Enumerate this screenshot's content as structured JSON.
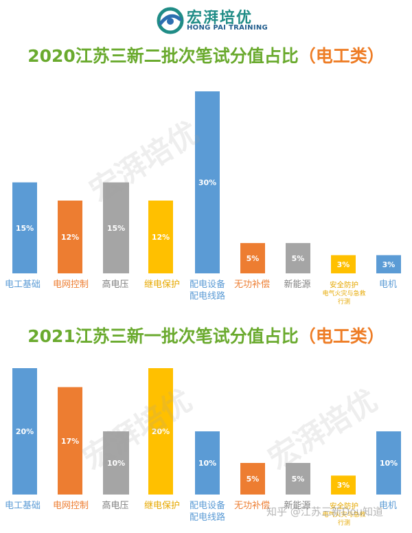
{
  "logo": {
    "name": "宏湃培优",
    "name_en": "HONG PAI TRAINING"
  },
  "watermark": {
    "text": "知乎 @江苏三新Dou知道"
  },
  "colors": {
    "blue": "#5b9bd5",
    "orange": "#ed7d31",
    "gray": "#a5a5a5",
    "gold": "#ffc000",
    "title_green": "#6aaa2e",
    "title_orange": "#ee7d26"
  },
  "chart_data": [
    {
      "type": "bar",
      "title": "2020江苏三新二批次笔试分值占比",
      "title_tag": "（电工类）",
      "categories": [
        "电工基础",
        "电网控制",
        "高电压",
        "继电保护",
        "配电设备\n配电线路",
        "无功补偿",
        "新能源",
        "安全防护\n电气火灾与急救\n行测",
        "电机"
      ],
      "values": [
        15,
        12,
        15,
        12,
        30,
        5,
        5,
        3,
        3
      ],
      "data_labels": [
        "15%",
        "12%",
        "15%",
        "12%",
        "30%",
        "5%",
        "5%",
        "3%",
        "3%"
      ],
      "bar_colors": [
        "#5b9bd5",
        "#ed7d31",
        "#a5a5a5",
        "#ffc000",
        "#5b9bd5",
        "#ed7d31",
        "#a5a5a5",
        "#ffc000",
        "#5b9bd5"
      ],
      "label_colors": [
        "#5b9bd5",
        "#ed7d31",
        "#7f7f7f",
        "#e6a800",
        "#5b9bd5",
        "#ed7d31",
        "#7f7f7f",
        "#e6a800",
        "#5b9bd5"
      ],
      "ylim": [
        0,
        30
      ],
      "grid": false,
      "legend": "none"
    },
    {
      "type": "bar",
      "title": "2021江苏三新一批次笔试分值占比",
      "title_tag": "（电工类）",
      "categories": [
        "电工基础",
        "电网控制",
        "高电压",
        "继电保护",
        "配电设备\n配电线路",
        "无功补偿",
        "新能源",
        "安全防护\n电气火灾与急救\n行测",
        "电机"
      ],
      "values": [
        20,
        17,
        10,
        20,
        10,
        5,
        5,
        3,
        10
      ],
      "data_labels": [
        "20%",
        "17%",
        "10%",
        "20%",
        "10%",
        "5%",
        "5%",
        "3%",
        "10%"
      ],
      "bar_colors": [
        "#5b9bd5",
        "#ed7d31",
        "#a5a5a5",
        "#ffc000",
        "#5b9bd5",
        "#ed7d31",
        "#a5a5a5",
        "#ffc000",
        "#5b9bd5"
      ],
      "label_colors": [
        "#5b9bd5",
        "#ed7d31",
        "#7f7f7f",
        "#e6a800",
        "#5b9bd5",
        "#ed7d31",
        "#7f7f7f",
        "#e6a800",
        "#5b9bd5"
      ],
      "ylim": [
        0,
        20
      ],
      "grid": false,
      "legend": "none"
    }
  ]
}
